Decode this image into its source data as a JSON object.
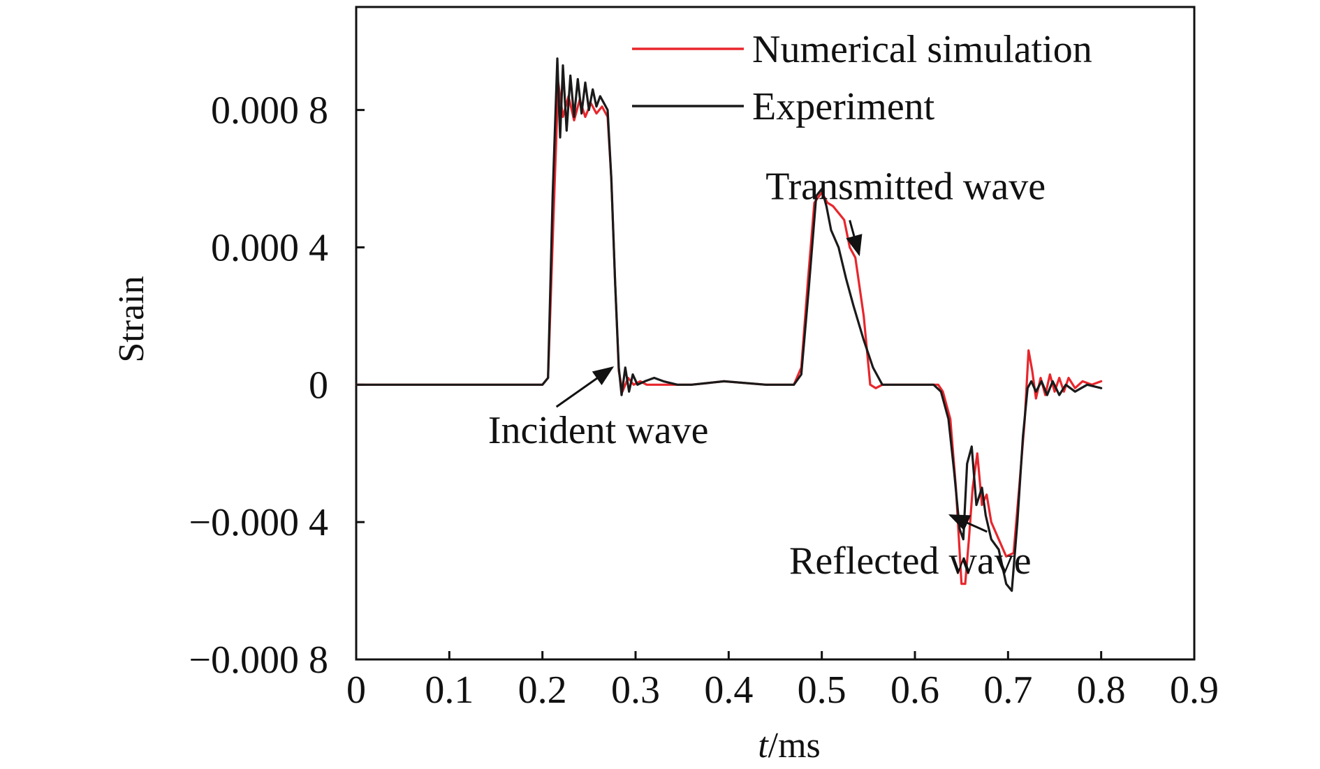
{
  "chart_data": {
    "type": "line",
    "title": "",
    "xlabel": "t/ms",
    "xlabel_italic_part": "t",
    "xlabel_rest": "/ms",
    "ylabel": "Strain",
    "xlim": [
      0,
      0.9
    ],
    "ylim": [
      -0.0008,
      0.0011
    ],
    "x_ticks": [
      0,
      0.1,
      0.2,
      0.3,
      0.4,
      0.5,
      0.6,
      0.7,
      0.8,
      0.9
    ],
    "x_tick_labels": [
      "0",
      "0.1",
      "0.2",
      "0.3",
      "0.4",
      "0.5",
      "0.6",
      "0.7",
      "0.8",
      "0.9"
    ],
    "y_ticks": [
      -0.0008,
      -0.0004,
      0,
      0.0004,
      0.0008
    ],
    "y_tick_labels": [
      "−0.000 8",
      "−0.000 4",
      "0",
      "0.000 4",
      "0.000 8"
    ],
    "grid": false,
    "legend_position": "top-right",
    "series": [
      {
        "name": "Numerical simulation",
        "color": "#e8262c",
        "points": [
          [
            0,
            0
          ],
          [
            0.2,
            0
          ],
          [
            0.206,
            2e-05
          ],
          [
            0.212,
            0.0005
          ],
          [
            0.217,
            0.00088
          ],
          [
            0.222,
            0.00078
          ],
          [
            0.228,
            0.00084
          ],
          [
            0.234,
            0.00077
          ],
          [
            0.24,
            0.00083
          ],
          [
            0.246,
            0.00078
          ],
          [
            0.252,
            0.00082
          ],
          [
            0.258,
            0.00079
          ],
          [
            0.264,
            0.00081
          ],
          [
            0.27,
            0.00078
          ],
          [
            0.274,
            0.0006
          ],
          [
            0.278,
            0.0003
          ],
          [
            0.282,
            4e-05
          ],
          [
            0.286,
            -2e-05
          ],
          [
            0.292,
            2e-05
          ],
          [
            0.298,
            0.0
          ],
          [
            0.305,
            1e-05
          ],
          [
            0.312,
            0.0
          ],
          [
            0.33,
            0.0
          ],
          [
            0.36,
            0.0
          ],
          [
            0.395,
            1e-05
          ],
          [
            0.44,
            0.0
          ],
          [
            0.47,
            0.0
          ],
          [
            0.478,
            5e-05
          ],
          [
            0.485,
            0.0003
          ],
          [
            0.492,
            0.00053
          ],
          [
            0.5,
            0.00056
          ],
          [
            0.506,
            0.00053
          ],
          [
            0.512,
            0.00052
          ],
          [
            0.518,
            0.0005
          ],
          [
            0.524,
            0.00048
          ],
          [
            0.53,
            0.0004
          ],
          [
            0.536,
            0.00037
          ],
          [
            0.545,
            0.0002
          ],
          [
            0.552,
            0.0
          ],
          [
            0.558,
            -1e-05
          ],
          [
            0.565,
            0.0
          ],
          [
            0.6,
            0.0
          ],
          [
            0.625,
            0.0
          ],
          [
            0.63,
            -2e-05
          ],
          [
            0.638,
            -0.0001
          ],
          [
            0.644,
            -0.0003
          ],
          [
            0.65,
            -0.00058
          ],
          [
            0.654,
            -0.00058
          ],
          [
            0.658,
            -0.00045
          ],
          [
            0.662,
            -0.0003
          ],
          [
            0.667,
            -0.0002
          ],
          [
            0.672,
            -0.00035
          ],
          [
            0.677,
            -0.00032
          ],
          [
            0.682,
            -0.0004
          ],
          [
            0.69,
            -0.00045
          ],
          [
            0.698,
            -0.0005
          ],
          [
            0.706,
            -0.00049
          ],
          [
            0.712,
            -0.0003
          ],
          [
            0.718,
            -0.0001
          ],
          [
            0.722,
            0.0001
          ],
          [
            0.726,
            4e-05
          ],
          [
            0.73,
            -4e-05
          ],
          [
            0.735,
            2e-05
          ],
          [
            0.74,
            -3e-05
          ],
          [
            0.745,
            3e-05
          ],
          [
            0.75,
            -2e-05
          ],
          [
            0.755,
            2e-05
          ],
          [
            0.76,
            -2e-05
          ],
          [
            0.765,
            2e-05
          ],
          [
            0.772,
            -1e-05
          ],
          [
            0.78,
            1e-05
          ],
          [
            0.79,
            0.0
          ],
          [
            0.8,
            1e-05
          ]
        ]
      },
      {
        "name": "Experiment",
        "color": "#1a1a1a",
        "points": [
          [
            0,
            0
          ],
          [
            0.2,
            0
          ],
          [
            0.206,
            2e-05
          ],
          [
            0.211,
            0.00055
          ],
          [
            0.216,
            0.00095
          ],
          [
            0.219,
            0.00072
          ],
          [
            0.222,
            0.00093
          ],
          [
            0.226,
            0.00074
          ],
          [
            0.23,
            0.0009
          ],
          [
            0.234,
            0.00078
          ],
          [
            0.238,
            0.00089
          ],
          [
            0.242,
            0.00079
          ],
          [
            0.246,
            0.00088
          ],
          [
            0.25,
            0.0008
          ],
          [
            0.254,
            0.00086
          ],
          [
            0.258,
            0.00081
          ],
          [
            0.262,
            0.00084
          ],
          [
            0.266,
            0.00082
          ],
          [
            0.27,
            0.0008
          ],
          [
            0.274,
            0.0006
          ],
          [
            0.278,
            0.0003
          ],
          [
            0.282,
            5e-05
          ],
          [
            0.285,
            -3e-05
          ],
          [
            0.289,
            5e-05
          ],
          [
            0.293,
            -2e-05
          ],
          [
            0.297,
            3e-05
          ],
          [
            0.302,
            0.0
          ],
          [
            0.31,
            1e-05
          ],
          [
            0.32,
            2e-05
          ],
          [
            0.33,
            1e-05
          ],
          [
            0.345,
            0.0
          ],
          [
            0.36,
            0.0
          ],
          [
            0.395,
            1e-05
          ],
          [
            0.44,
            0.0
          ],
          [
            0.47,
            0.0
          ],
          [
            0.478,
            3e-05
          ],
          [
            0.486,
            0.00028
          ],
          [
            0.494,
            0.00055
          ],
          [
            0.5,
            0.00057
          ],
          [
            0.505,
            0.00052
          ],
          [
            0.51,
            0.00045
          ],
          [
            0.518,
            0.0004
          ],
          [
            0.526,
            0.00031
          ],
          [
            0.534,
            0.00023
          ],
          [
            0.545,
            0.00013
          ],
          [
            0.555,
            5e-05
          ],
          [
            0.565,
            0.0
          ],
          [
            0.6,
            0.0
          ],
          [
            0.62,
            0.0
          ],
          [
            0.628,
            -2e-05
          ],
          [
            0.636,
            -0.0001
          ],
          [
            0.642,
            -0.00025
          ],
          [
            0.648,
            -0.00042
          ],
          [
            0.652,
            -0.00045
          ],
          [
            0.656,
            -0.00023
          ],
          [
            0.661,
            -0.00018
          ],
          [
            0.666,
            -0.00035
          ],
          [
            0.672,
            -0.0003
          ],
          [
            0.676,
            -0.00038
          ],
          [
            0.682,
            -0.00045
          ],
          [
            0.69,
            -0.00048
          ],
          [
            0.698,
            -0.00058
          ],
          [
            0.704,
            -0.0006
          ],
          [
            0.71,
            -0.0004
          ],
          [
            0.716,
            -0.00015
          ],
          [
            0.721,
            -1e-05
          ],
          [
            0.725,
            1e-05
          ],
          [
            0.73,
            -2e-05
          ],
          [
            0.736,
            1e-05
          ],
          [
            0.742,
            -3e-05
          ],
          [
            0.748,
            1e-05
          ],
          [
            0.755,
            -3e-05
          ],
          [
            0.762,
            0.0
          ],
          [
            0.772,
            -2e-05
          ],
          [
            0.785,
            0.0
          ],
          [
            0.8,
            -1e-05
          ]
        ]
      }
    ],
    "annotations": [
      {
        "text": "Incident wave",
        "arrow_to": [
          0.275,
          5e-05
        ],
        "text_at": [
          0.26,
          -0.00017
        ]
      },
      {
        "text": "Transmitted wave",
        "arrow_to": [
          0.54,
          0.00038
        ],
        "text_at": [
          0.59,
          0.00054
        ]
      },
      {
        "text": "Reflected wave",
        "arrow_to": [
          0.638,
          -0.00038
        ],
        "text_at": [
          0.595,
          -0.00055
        ]
      }
    ]
  }
}
